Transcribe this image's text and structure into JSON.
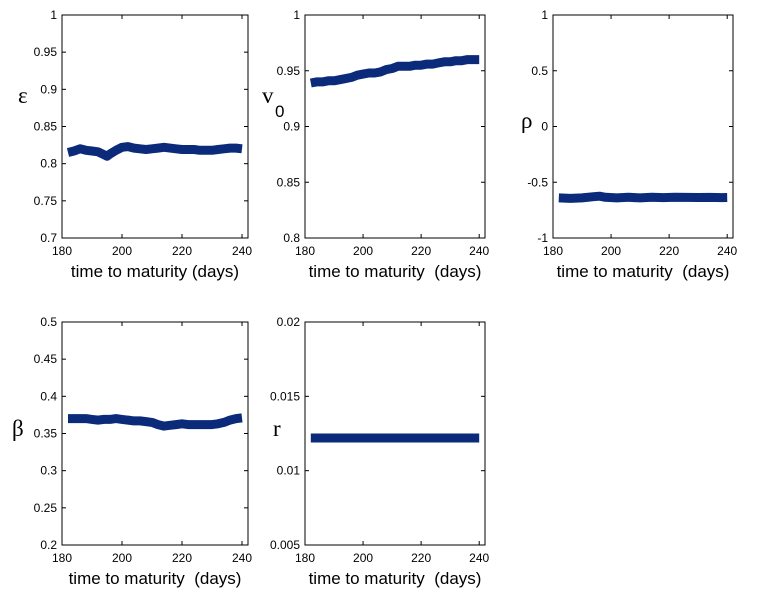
{
  "chart_data": [
    {
      "id": "epsilon",
      "type": "line",
      "ylabel": "ε",
      "ylabel_sub": "",
      "xlabel": "time to maturity (days)",
      "xlim": [
        180,
        242
      ],
      "ylim": [
        0.7,
        1
      ],
      "xticks": [
        "180",
        "200",
        "220",
        "240"
      ],
      "xtick_values": [
        180,
        200,
        220,
        240
      ],
      "yticks": [
        "0.7",
        "0.75",
        "0.8",
        "0.85",
        "0.9",
        "0.95",
        "1"
      ],
      "ytick_values": [
        0.7,
        0.75,
        0.8,
        0.85,
        0.9,
        0.95,
        1
      ],
      "color": "#0b2a7a",
      "series": [
        {
          "x": [
            182,
            184,
            186,
            188,
            190,
            192,
            194,
            195,
            196,
            198,
            200,
            202,
            204,
            206,
            208,
            210,
            212,
            214,
            216,
            218,
            220,
            222,
            224,
            226,
            228,
            230,
            232,
            234,
            236,
            238,
            240
          ],
          "y": [
            0.815,
            0.817,
            0.82,
            0.818,
            0.817,
            0.816,
            0.812,
            0.81,
            0.813,
            0.818,
            0.822,
            0.823,
            0.821,
            0.82,
            0.819,
            0.82,
            0.821,
            0.822,
            0.821,
            0.82,
            0.819,
            0.819,
            0.819,
            0.818,
            0.818,
            0.818,
            0.819,
            0.82,
            0.821,
            0.821,
            0.82
          ]
        }
      ]
    },
    {
      "id": "v0",
      "type": "line",
      "ylabel": "v",
      "ylabel_sub": "0",
      "xlabel": "time to maturity  (days)",
      "xlim": [
        180,
        242
      ],
      "ylim": [
        0.8,
        1
      ],
      "xticks": [
        "180",
        "200",
        "220",
        "240"
      ],
      "xtick_values": [
        180,
        200,
        220,
        240
      ],
      "yticks": [
        "0.8",
        "0.85",
        "0.9",
        "0.95",
        "1"
      ],
      "ytick_values": [
        0.8,
        0.85,
        0.9,
        0.95,
        1
      ],
      "color": "#0b2a7a",
      "series": [
        {
          "x": [
            182,
            184,
            186,
            188,
            190,
            192,
            194,
            196,
            198,
            200,
            202,
            204,
            206,
            208,
            210,
            212,
            214,
            216,
            218,
            220,
            222,
            224,
            226,
            228,
            230,
            232,
            234,
            236,
            238,
            240
          ],
          "y": [
            0.939,
            0.94,
            0.94,
            0.941,
            0.941,
            0.942,
            0.943,
            0.944,
            0.946,
            0.947,
            0.948,
            0.948,
            0.949,
            0.951,
            0.952,
            0.954,
            0.954,
            0.954,
            0.955,
            0.955,
            0.956,
            0.956,
            0.957,
            0.958,
            0.958,
            0.959,
            0.959,
            0.96,
            0.96,
            0.96
          ]
        }
      ]
    },
    {
      "id": "rho",
      "type": "line",
      "ylabel": "ρ",
      "ylabel_sub": "",
      "xlabel": "time to maturity  (days)",
      "xlim": [
        180,
        242
      ],
      "ylim": [
        -1,
        1
      ],
      "xticks": [
        "180",
        "200",
        "220",
        "240"
      ],
      "xtick_values": [
        180,
        200,
        220,
        240
      ],
      "yticks": [
        "-1",
        "-0.5",
        "0",
        "0.5",
        "1"
      ],
      "ytick_values": [
        -1,
        -0.5,
        0,
        0.5,
        1
      ],
      "color": "#0b2a7a",
      "series": [
        {
          "x": [
            182,
            186,
            190,
            194,
            196,
            198,
            202,
            206,
            210,
            214,
            218,
            222,
            226,
            230,
            234,
            238,
            240
          ],
          "y": [
            -0.64,
            -0.645,
            -0.64,
            -0.63,
            -0.625,
            -0.635,
            -0.64,
            -0.635,
            -0.64,
            -0.635,
            -0.638,
            -0.635,
            -0.636,
            -0.637,
            -0.636,
            -0.638,
            -0.637
          ]
        }
      ]
    },
    {
      "id": "beta",
      "type": "line",
      "ylabel": "β",
      "ylabel_sub": "",
      "xlabel": "time to maturity  (days)",
      "xlim": [
        180,
        242
      ],
      "ylim": [
        0.2,
        0.5
      ],
      "xticks": [
        "180",
        "200",
        "220",
        "240"
      ],
      "xtick_values": [
        180,
        200,
        220,
        240
      ],
      "yticks": [
        "0.2",
        "0.25",
        "0.3",
        "0.35",
        "0.4",
        "0.45",
        "0.5"
      ],
      "ytick_values": [
        0.2,
        0.25,
        0.3,
        0.35,
        0.4,
        0.45,
        0.5
      ],
      "color": "#0b2a7a",
      "series": [
        {
          "x": [
            182,
            184,
            186,
            188,
            190,
            192,
            194,
            196,
            198,
            200,
            202,
            204,
            206,
            208,
            210,
            212,
            214,
            216,
            218,
            220,
            222,
            224,
            226,
            228,
            230,
            232,
            234,
            236,
            238,
            240
          ],
          "y": [
            0.37,
            0.37,
            0.37,
            0.37,
            0.369,
            0.368,
            0.369,
            0.369,
            0.37,
            0.369,
            0.368,
            0.367,
            0.367,
            0.366,
            0.365,
            0.362,
            0.36,
            0.361,
            0.362,
            0.363,
            0.362,
            0.362,
            0.362,
            0.362,
            0.362,
            0.363,
            0.365,
            0.368,
            0.37,
            0.371
          ]
        }
      ]
    },
    {
      "id": "r",
      "type": "line",
      "ylabel": "r",
      "ylabel_sub": "",
      "xlabel": "time to maturity  (days)",
      "xlim": [
        180,
        242
      ],
      "ylim": [
        0.005,
        0.02
      ],
      "xticks": [
        "180",
        "200",
        "220",
        "240"
      ],
      "xtick_values": [
        180,
        200,
        220,
        240
      ],
      "yticks": [
        "0.005",
        "0.01",
        "0.015",
        "0.02"
      ],
      "ytick_values": [
        0.005,
        0.01,
        0.015,
        0.02
      ],
      "color": "#0b2a7a",
      "series": [
        {
          "x": [
            182,
            190,
            200,
            210,
            220,
            230,
            240
          ],
          "y": [
            0.0122,
            0.0122,
            0.0122,
            0.0122,
            0.0122,
            0.0122,
            0.0122
          ]
        }
      ]
    }
  ]
}
